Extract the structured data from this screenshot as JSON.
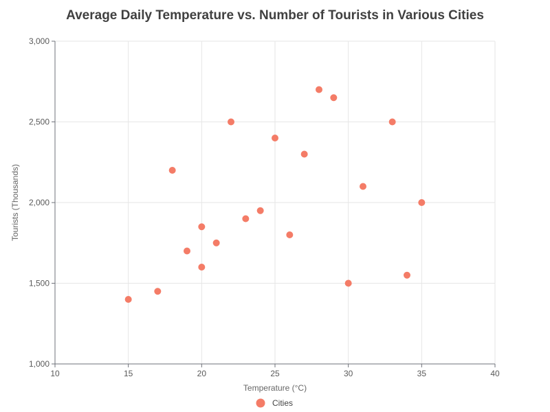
{
  "chart_data": {
    "type": "scatter",
    "title": "Average Daily Temperature vs. Number of Tourists in Various Cities",
    "xlabel": "Temperature (°C)",
    "ylabel": "Tourists (Thousands)",
    "xlim": [
      10,
      40
    ],
    "ylim": [
      1000,
      3000
    ],
    "x_ticks": [
      10,
      15,
      20,
      25,
      30,
      35,
      40
    ],
    "y_ticks": [
      1000,
      1500,
      2000,
      2500,
      3000
    ],
    "x_tick_labels": [
      "10",
      "15",
      "20",
      "25",
      "30",
      "35",
      "40"
    ],
    "y_tick_labels": [
      "1,000",
      "1,500",
      "2,000",
      "2,500",
      "3,000"
    ],
    "grid": true,
    "legend_position": "bottom-center",
    "series": [
      {
        "name": "Cities",
        "color": "#f47c67",
        "points": [
          {
            "x": 15,
            "y": 1400
          },
          {
            "x": 17,
            "y": 1450
          },
          {
            "x": 18,
            "y": 2200
          },
          {
            "x": 19,
            "y": 1700
          },
          {
            "x": 20,
            "y": 1600
          },
          {
            "x": 20,
            "y": 1850
          },
          {
            "x": 21,
            "y": 1750
          },
          {
            "x": 22,
            "y": 2500
          },
          {
            "x": 23,
            "y": 1900
          },
          {
            "x": 24,
            "y": 1950
          },
          {
            "x": 25,
            "y": 2400
          },
          {
            "x": 26,
            "y": 1800
          },
          {
            "x": 27,
            "y": 2300
          },
          {
            "x": 28,
            "y": 2700
          },
          {
            "x": 29,
            "y": 2650
          },
          {
            "x": 30,
            "y": 1500
          },
          {
            "x": 31,
            "y": 2100
          },
          {
            "x": 33,
            "y": 2500
          },
          {
            "x": 34,
            "y": 1550
          },
          {
            "x": 35,
            "y": 2000
          }
        ]
      }
    ]
  },
  "colors": {
    "grid": "#e6e6e6",
    "axis": "#6e7079",
    "point": "#f47c67"
  }
}
